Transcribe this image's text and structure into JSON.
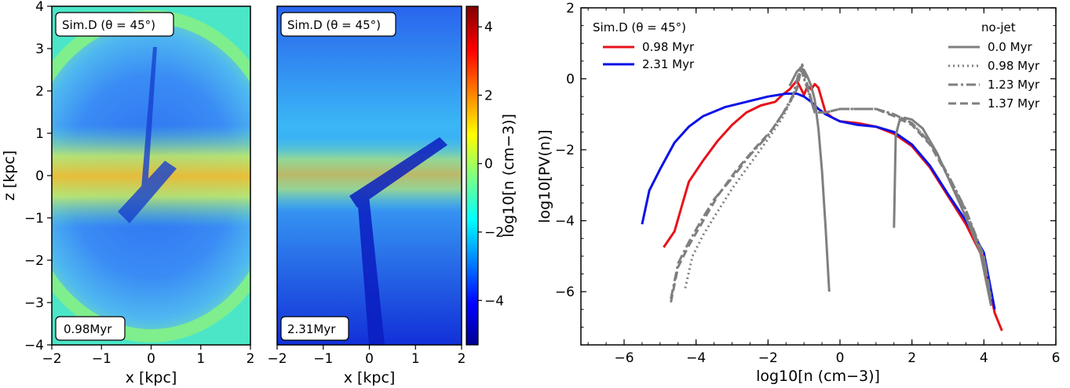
{
  "colors": {
    "sim_red": "#e8121a",
    "sim_blue": "#0b12e6",
    "nojet_gray": "#7f7f7f"
  },
  "left_figure": {
    "panels": [
      {
        "sim_label": "Sim.D (θ = 45°)",
        "time_label": "0.98Myr"
      },
      {
        "sim_label": "Sim.D (θ = 45°)",
        "time_label": "2.31Myr"
      }
    ],
    "xlabel": "x [kpc]",
    "ylabel": "z [kpc]",
    "x_ticks": [
      "−2",
      "−1",
      "0",
      "1",
      "2"
    ],
    "y_ticks": [
      "4",
      "3",
      "2",
      "1",
      "0",
      "−1",
      "−2",
      "−3",
      "−4"
    ],
    "colorbar_label": "log10[n (cm−3)]",
    "colorbar_ticks": [
      "4",
      "2",
      "0",
      "−2",
      "−4"
    ],
    "colorbar_range": [
      -5.3,
      4.6
    ],
    "colormap": "jet"
  },
  "chart_data": {
    "type": "line",
    "xlabel": "log10[n (cm−3)]",
    "ylabel": "log10[PV(n)]",
    "xlim": [
      -7.2,
      6
    ],
    "ylim": [
      -7.5,
      2
    ],
    "x_ticks": [
      "−6",
      "−4",
      "−2",
      "0",
      "2",
      "4",
      "6"
    ],
    "y_ticks": [
      "2",
      "0",
      "−2",
      "−4",
      "−6"
    ],
    "legend_left_title": "Sim.D (θ = 45°)",
    "legend_right_title": "no-jet",
    "series": [
      {
        "name": "0.98 Myr",
        "group": "Sim.D",
        "style": "solid",
        "color": "#e8121a",
        "x": [
          -4.9,
          -4.6,
          -4.4,
          -4.2,
          -3.8,
          -3.4,
          -3.0,
          -2.6,
          -2.2,
          -1.8,
          -1.6,
          -1.4,
          -1.2,
          -1.0,
          -0.9,
          -0.8,
          -0.7,
          -0.6,
          -0.5,
          -0.4,
          -0.2,
          0.0,
          0.5,
          1.0,
          1.5,
          2.0,
          2.5,
          3.0,
          3.5,
          4.0,
          4.3,
          4.5
        ],
        "y": [
          -4.75,
          -4.3,
          -3.6,
          -2.9,
          -2.3,
          -1.75,
          -1.3,
          -0.95,
          -0.75,
          -0.65,
          -0.45,
          -0.3,
          -0.05,
          -0.45,
          -0.2,
          -0.3,
          -0.15,
          -0.25,
          -0.6,
          -0.95,
          -1.1,
          -1.2,
          -1.25,
          -1.35,
          -1.55,
          -1.9,
          -2.5,
          -3.3,
          -4.1,
          -5.1,
          -6.6,
          -7.1
        ]
      },
      {
        "name": "2.31 Myr",
        "group": "Sim.D",
        "style": "solid",
        "color": "#0b12e6",
        "x": [
          -5.5,
          -5.3,
          -5.0,
          -4.6,
          -4.2,
          -3.8,
          -3.2,
          -2.6,
          -2.0,
          -1.5,
          -1.2,
          -1.0,
          -0.8,
          -0.6,
          -0.4,
          -0.2,
          0.0,
          0.5,
          1.0,
          1.5,
          2.0,
          2.5,
          3.0,
          3.5,
          4.0,
          4.3
        ],
        "y": [
          -4.1,
          -3.15,
          -2.55,
          -1.8,
          -1.35,
          -1.05,
          -0.8,
          -0.65,
          -0.5,
          -0.42,
          -0.42,
          -0.5,
          -0.65,
          -0.85,
          -1.0,
          -1.1,
          -1.2,
          -1.3,
          -1.35,
          -1.5,
          -1.85,
          -2.45,
          -3.25,
          -4.0,
          -4.9,
          -6.5
        ]
      },
      {
        "name": "0.0 Myr",
        "group": "no-jet",
        "style": "solid",
        "color": "#7f7f7f",
        "x": [
          -1.4,
          -1.2,
          -1.1,
          -1.0,
          -0.9,
          -0.8,
          -0.7,
          -0.6,
          -0.5,
          -0.4,
          -0.3
        ],
        "y": [
          -0.2,
          0.2,
          0.3,
          0.25,
          0.05,
          -0.2,
          -0.6,
          -1.4,
          -2.6,
          -4.2,
          -6.0
        ],
        "x2": [
          1.5,
          1.55,
          1.65,
          1.8,
          2.0,
          2.3,
          2.7,
          3.1,
          3.5,
          3.9,
          4.2
        ],
        "y2": [
          -4.2,
          -1.6,
          -1.2,
          -1.1,
          -1.15,
          -1.4,
          -2.1,
          -3.0,
          -3.9,
          -4.9,
          -6.4
        ]
      },
      {
        "name": "0.98 Myr",
        "group": "no-jet",
        "style": "dotted",
        "color": "#7f7f7f",
        "x": [
          -4.3,
          -4.1,
          -3.8,
          -3.5,
          -3.0,
          -2.5,
          -2.0,
          -1.6,
          -1.3,
          -1.1,
          -0.9,
          -0.7,
          -0.4,
          0.0,
          0.5,
          1.0,
          1.5,
          2.0,
          2.5,
          3.0,
          3.5,
          4.0,
          4.2
        ],
        "y": [
          -5.9,
          -5.0,
          -4.4,
          -3.9,
          -3.1,
          -2.4,
          -1.7,
          -1.1,
          -0.5,
          0.3,
          -0.3,
          -0.95,
          -0.95,
          -0.85,
          -0.85,
          -0.85,
          -1.0,
          -1.25,
          -1.8,
          -2.7,
          -3.7,
          -5.1,
          -6.3
        ]
      },
      {
        "name": "1.23 Myr",
        "group": "no-jet",
        "style": "dashdot",
        "color": "#7f7f7f",
        "x": [
          -4.7,
          -4.5,
          -4.2,
          -3.8,
          -3.5,
          -3.0,
          -2.5,
          -2.0,
          -1.6,
          -1.3,
          -1.1,
          -0.9,
          -0.7,
          -0.4,
          0.0,
          0.5,
          1.0,
          1.5,
          2.0,
          2.5,
          3.0,
          3.5,
          4.0,
          4.2
        ],
        "y": [
          -6.2,
          -5.2,
          -4.6,
          -3.9,
          -3.4,
          -2.8,
          -2.15,
          -1.6,
          -1.0,
          -0.45,
          0.35,
          -0.3,
          -0.95,
          -0.95,
          -0.85,
          -0.85,
          -0.85,
          -1.0,
          -1.25,
          -1.8,
          -2.7,
          -3.7,
          -5.0,
          -6.2
        ]
      },
      {
        "name": "1.37 Myr",
        "group": "no-jet",
        "style": "dashed",
        "color": "#7f7f7f",
        "x": [
          -4.7,
          -4.5,
          -4.2,
          -3.8,
          -3.4,
          -2.9,
          -2.4,
          -1.9,
          -1.5,
          -1.2,
          -1.05,
          -0.9,
          -0.7,
          -0.4,
          0.0,
          0.5,
          1.0,
          1.5,
          2.0,
          2.5,
          3.0,
          3.5,
          4.0,
          4.2
        ],
        "y": [
          -6.3,
          -5.3,
          -4.7,
          -4.0,
          -3.3,
          -2.6,
          -2.0,
          -1.45,
          -0.85,
          -0.3,
          0.4,
          -0.2,
          -0.95,
          -0.95,
          -0.85,
          -0.85,
          -0.85,
          -1.05,
          -1.3,
          -1.85,
          -2.75,
          -3.75,
          -5.05,
          -6.25
        ]
      }
    ]
  }
}
